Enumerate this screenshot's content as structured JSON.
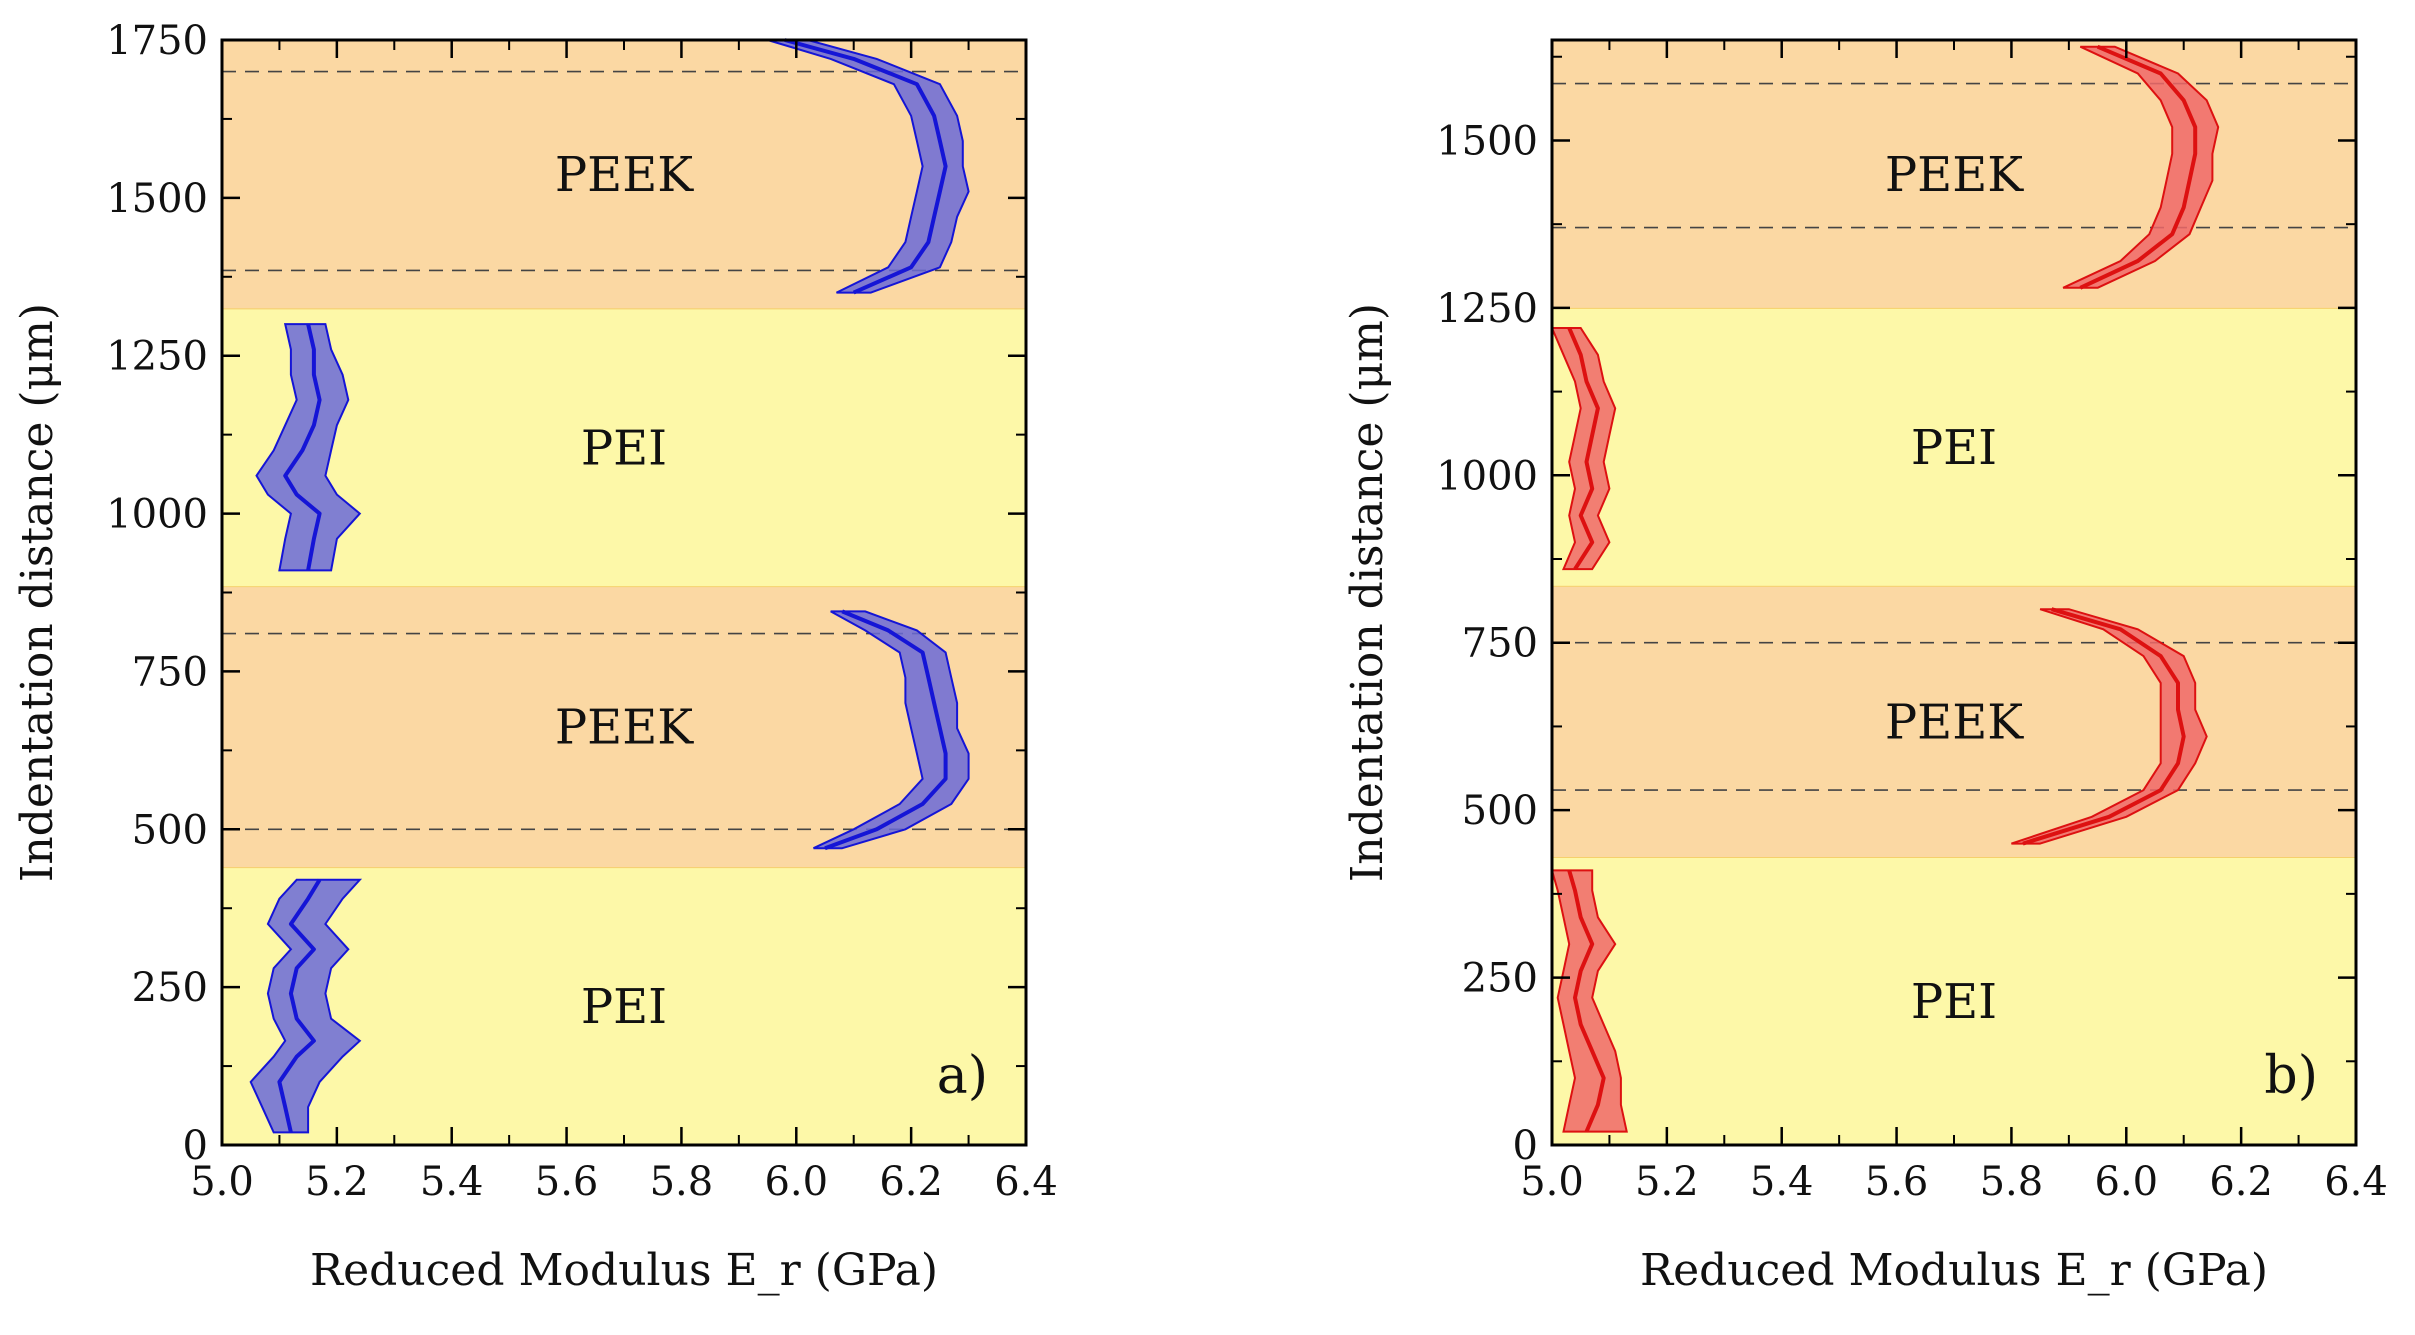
{
  "chart_data": [
    {
      "type": "line",
      "panel_tag": "a)",
      "xlabel": "Reduced Modulus E_r (GPa)",
      "ylabel": "Indentation distance (μm)",
      "xlim": [
        5.0,
        6.4
      ],
      "ylim": [
        0,
        1750
      ],
      "xticks": [
        "5.0",
        "5.2",
        "5.4",
        "5.6",
        "5.8",
        "6.0",
        "6.2",
        "6.4"
      ],
      "yticks": [
        "0",
        "250",
        "500",
        "750",
        "1000",
        "1250",
        "1500",
        "1750"
      ],
      "series_color": "#1515d6",
      "band_color": "#6a6ad8",
      "regions": [
        {
          "label": "PEI",
          "y0": 0,
          "y1": 440,
          "color": "#fdf8a8"
        },
        {
          "label": "PEEK",
          "y0": 440,
          "y1": 885,
          "color": "#fbd8a3"
        },
        {
          "label": "PEI",
          "y0": 885,
          "y1": 1325,
          "color": "#fdf8a8"
        },
        {
          "label": "PEEK",
          "y0": 1325,
          "y1": 1750,
          "color": "#fbd8a3"
        }
      ],
      "dashed_lines": [
        500,
        810,
        1385,
        1700
      ],
      "series": [
        {
          "y": [
            20,
            60,
            100,
            140,
            165,
            200,
            240,
            280,
            310,
            350,
            390,
            420
          ],
          "x": [
            5.12,
            5.11,
            5.1,
            5.13,
            5.16,
            5.13,
            5.12,
            5.13,
            5.16,
            5.12,
            5.15,
            5.17
          ],
          "lower": [
            5.09,
            5.07,
            5.05,
            5.09,
            5.11,
            5.09,
            5.08,
            5.09,
            5.12,
            5.08,
            5.1,
            5.13
          ],
          "upper": [
            5.15,
            5.15,
            5.17,
            5.21,
            5.24,
            5.19,
            5.18,
            5.19,
            5.22,
            5.18,
            5.21,
            5.24
          ]
        },
        {
          "y": [
            470,
            500,
            540,
            580,
            620,
            660,
            700,
            740,
            780,
            815,
            845
          ],
          "x": [
            6.05,
            6.14,
            6.22,
            6.26,
            6.26,
            6.25,
            6.24,
            6.23,
            6.22,
            6.16,
            6.08
          ],
          "lower": [
            6.03,
            6.1,
            6.18,
            6.22,
            6.21,
            6.2,
            6.19,
            6.19,
            6.18,
            6.12,
            6.06
          ],
          "upper": [
            6.08,
            6.19,
            6.27,
            6.3,
            6.3,
            6.28,
            6.28,
            6.27,
            6.26,
            6.21,
            6.12
          ]
        },
        {
          "y": [
            910,
            960,
            1000,
            1030,
            1060,
            1100,
            1140,
            1180,
            1220,
            1260,
            1300
          ],
          "x": [
            5.15,
            5.16,
            5.17,
            5.13,
            5.11,
            5.14,
            5.16,
            5.17,
            5.16,
            5.16,
            5.15
          ],
          "lower": [
            5.1,
            5.11,
            5.12,
            5.08,
            5.06,
            5.09,
            5.11,
            5.13,
            5.12,
            5.12,
            5.11
          ],
          "upper": [
            5.19,
            5.2,
            5.24,
            5.2,
            5.18,
            5.19,
            5.2,
            5.22,
            5.21,
            5.19,
            5.18
          ]
        },
        {
          "y": [
            1350,
            1390,
            1430,
            1470,
            1510,
            1550,
            1590,
            1630,
            1680,
            1720,
            1750
          ],
          "x": [
            6.1,
            6.2,
            6.23,
            6.24,
            6.25,
            6.26,
            6.25,
            6.24,
            6.21,
            6.1,
            5.98
          ],
          "lower": [
            6.07,
            6.16,
            6.19,
            6.2,
            6.21,
            6.22,
            6.21,
            6.2,
            6.17,
            6.06,
            5.95
          ],
          "upper": [
            6.13,
            6.25,
            6.27,
            6.28,
            6.3,
            6.29,
            6.29,
            6.28,
            6.25,
            6.14,
            6.02
          ]
        }
      ]
    },
    {
      "type": "line",
      "panel_tag": "b)",
      "xlabel": "Reduced Modulus E_r (GPa)",
      "ylabel": "Indentation distance (μm)",
      "xlim": [
        5.0,
        6.4
      ],
      "ylim": [
        0,
        1650
      ],
      "xticks": [
        "5.0",
        "5.2",
        "5.4",
        "5.6",
        "5.8",
        "6.0",
        "6.2",
        "6.4"
      ],
      "yticks": [
        "0",
        "250",
        "500",
        "750",
        "1000",
        "1250",
        "1500"
      ],
      "series_color": "#dd1111",
      "band_color": "#f06868",
      "regions": [
        {
          "label": "PEI",
          "y0": 0,
          "y1": 430,
          "color": "#fdf8a8"
        },
        {
          "label": "PEEK",
          "y0": 430,
          "y1": 835,
          "color": "#fbd8a3"
        },
        {
          "label": "PEI",
          "y0": 835,
          "y1": 1250,
          "color": "#fdf8a8"
        },
        {
          "label": "PEEK",
          "y0": 1250,
          "y1": 1650,
          "color": "#fbd8a3"
        }
      ],
      "dashed_lines": [
        530,
        750,
        1370,
        1585
      ],
      "series": [
        {
          "y": [
            20,
            60,
            100,
            140,
            180,
            220,
            260,
            300,
            340,
            380,
            410
          ],
          "x": [
            5.06,
            5.08,
            5.09,
            5.07,
            5.05,
            5.04,
            5.05,
            5.07,
            5.05,
            5.04,
            5.03
          ],
          "lower": [
            5.02,
            5.03,
            5.04,
            5.03,
            5.02,
            5.01,
            5.02,
            5.03,
            5.02,
            5.01,
            5.0
          ],
          "upper": [
            5.13,
            5.12,
            5.12,
            5.11,
            5.09,
            5.07,
            5.08,
            5.11,
            5.08,
            5.07,
            5.07
          ]
        },
        {
          "y": [
            450,
            490,
            530,
            570,
            610,
            650,
            690,
            730,
            770,
            800
          ],
          "x": [
            5.82,
            5.97,
            6.06,
            6.09,
            6.1,
            6.09,
            6.09,
            6.06,
            5.99,
            5.87
          ],
          "lower": [
            5.8,
            5.94,
            6.03,
            6.06,
            6.06,
            6.06,
            6.06,
            6.03,
            5.96,
            5.85
          ],
          "upper": [
            5.85,
            6.0,
            6.09,
            6.12,
            6.14,
            6.12,
            6.12,
            6.1,
            6.02,
            5.9
          ]
        },
        {
          "y": [
            860,
            900,
            940,
            980,
            1020,
            1060,
            1100,
            1140,
            1180,
            1220
          ],
          "x": [
            5.04,
            5.07,
            5.05,
            5.07,
            5.06,
            5.07,
            5.08,
            5.06,
            5.05,
            5.03
          ],
          "lower": [
            5.02,
            5.04,
            5.03,
            5.04,
            5.03,
            5.04,
            5.05,
            5.04,
            5.02,
            5.0
          ],
          "upper": [
            5.07,
            5.1,
            5.08,
            5.1,
            5.09,
            5.1,
            5.11,
            5.09,
            5.08,
            5.05
          ]
        },
        {
          "y": [
            1280,
            1320,
            1360,
            1400,
            1440,
            1480,
            1520,
            1560,
            1600,
            1640
          ],
          "x": [
            5.92,
            6.02,
            6.08,
            6.1,
            6.11,
            6.12,
            6.12,
            6.1,
            6.06,
            5.95
          ],
          "lower": [
            5.89,
            5.99,
            6.04,
            6.06,
            6.07,
            6.08,
            6.08,
            6.06,
            6.02,
            5.92
          ],
          "upper": [
            5.95,
            6.05,
            6.11,
            6.13,
            6.15,
            6.15,
            6.16,
            6.14,
            6.09,
            5.98
          ]
        }
      ]
    }
  ]
}
